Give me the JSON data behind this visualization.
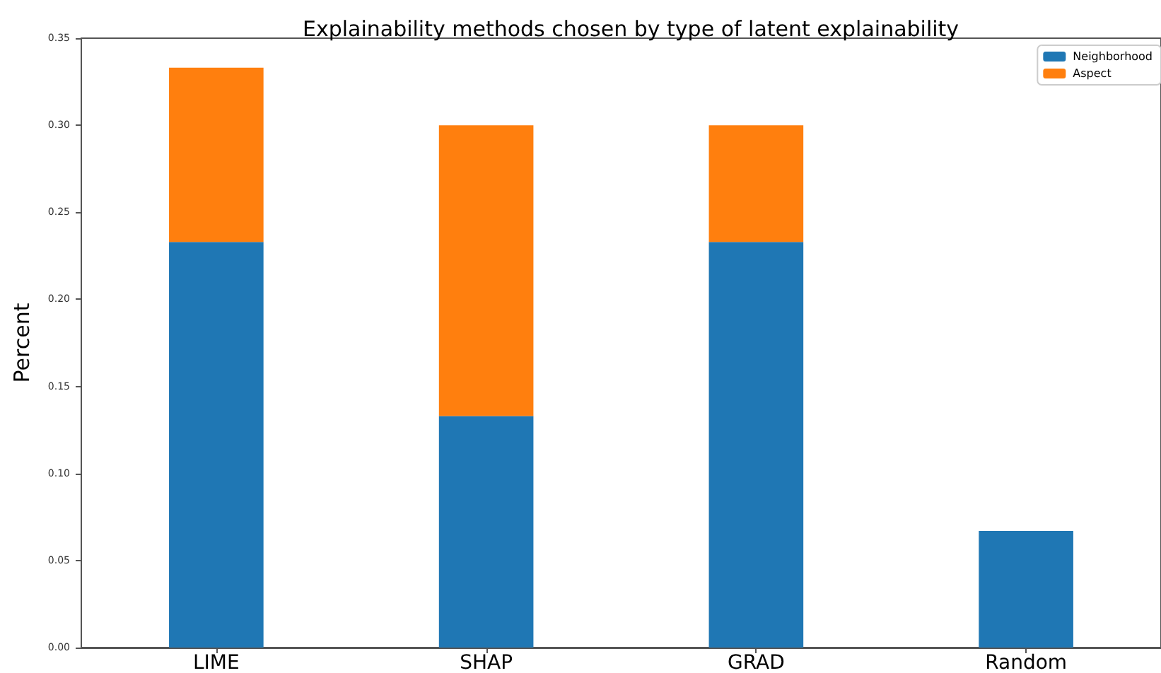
{
  "chart_data": {
    "type": "bar",
    "title": "Explainability methods chosen by type of latent explainability",
    "ylabel": "Percent",
    "categories": [
      "LIME",
      "SHAP",
      "GRAD",
      "Random"
    ],
    "series": [
      {
        "name": "Neighborhood",
        "color": "#1f77b4",
        "values": [
          0.233,
          0.133,
          0.233,
          0.067
        ]
      },
      {
        "name": "Aspect",
        "color": "#ff7f0e",
        "values": [
          0.1,
          0.167,
          0.067,
          0
        ]
      }
    ],
    "stacked": true,
    "ylim": [
      0,
      0.35
    ],
    "yticks": [
      {
        "value": 0,
        "label": "0.00"
      },
      {
        "value": 0.05,
        "label": "0.05"
      },
      {
        "value": 0.1,
        "label": "0.10"
      },
      {
        "value": 0.15,
        "label": "0.15"
      },
      {
        "value": 0.2,
        "label": "0.20"
      },
      {
        "value": 0.25,
        "label": "0.25"
      },
      {
        "value": 0.3,
        "label": "0.30"
      },
      {
        "value": 0.35,
        "label": "0.35"
      }
    ],
    "grid": false,
    "legend": "top right"
  }
}
